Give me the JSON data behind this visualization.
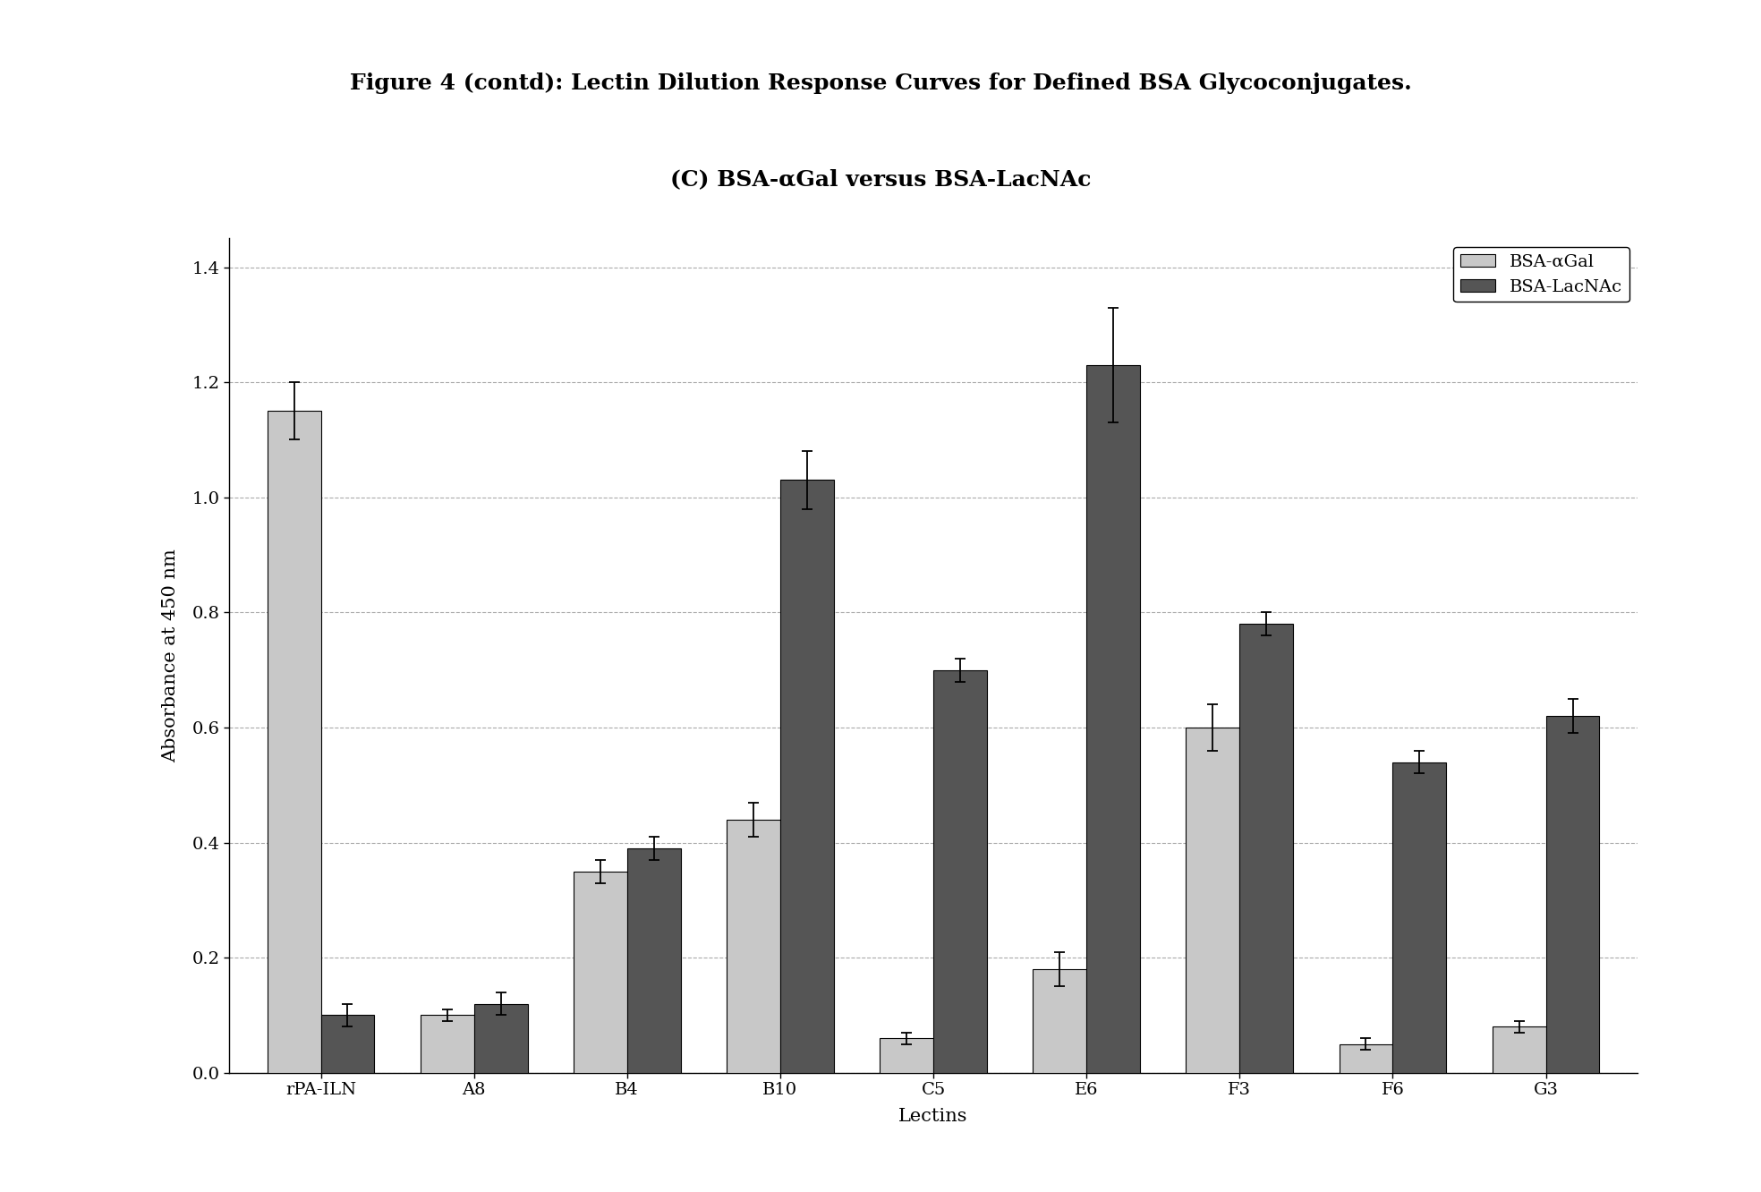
{
  "categories": [
    "rPA-ILN",
    "A8",
    "B4",
    "B10",
    "C5",
    "E6",
    "F3",
    "F6",
    "G3"
  ],
  "bsa_agal_values": [
    1.15,
    0.1,
    0.35,
    0.44,
    0.06,
    0.18,
    0.6,
    0.05,
    0.08
  ],
  "bsa_lacnac_values": [
    0.1,
    0.12,
    0.39,
    1.03,
    0.7,
    1.23,
    0.78,
    0.54,
    0.62
  ],
  "bsa_agal_errors": [
    0.05,
    0.01,
    0.02,
    0.03,
    0.01,
    0.03,
    0.04,
    0.01,
    0.01
  ],
  "bsa_lacnac_errors": [
    0.02,
    0.02,
    0.02,
    0.05,
    0.02,
    0.1,
    0.02,
    0.02,
    0.03
  ],
  "bsa_agal_color": "#c8c8c8",
  "bsa_lacnac_color": "#555555",
  "bar_edge_color": "#000000",
  "bar_width": 0.35,
  "title_main": "Figure 4 (contd): Lectin Dilution Response Curves for Defined BSA Glycoconjugates.",
  "title_sub": "(C) BSA-αGal versus BSA-LacNAc",
  "ylabel": "Absorbance at 450 nm",
  "xlabel": "Lectins",
  "ylim": [
    0.0,
    1.45
  ],
  "yticks": [
    0.0,
    0.2,
    0.4,
    0.6,
    0.8,
    1.0,
    1.2,
    1.4
  ],
  "legend_label1": "BSA-αGal",
  "legend_label2": "BSA-LacNAc",
  "background_color": "#ffffff",
  "grid_color": "#aaaaaa",
  "title_fontsize": 18,
  "subtitle_fontsize": 18,
  "axis_label_fontsize": 15,
  "tick_fontsize": 14,
  "legend_fontsize": 14
}
